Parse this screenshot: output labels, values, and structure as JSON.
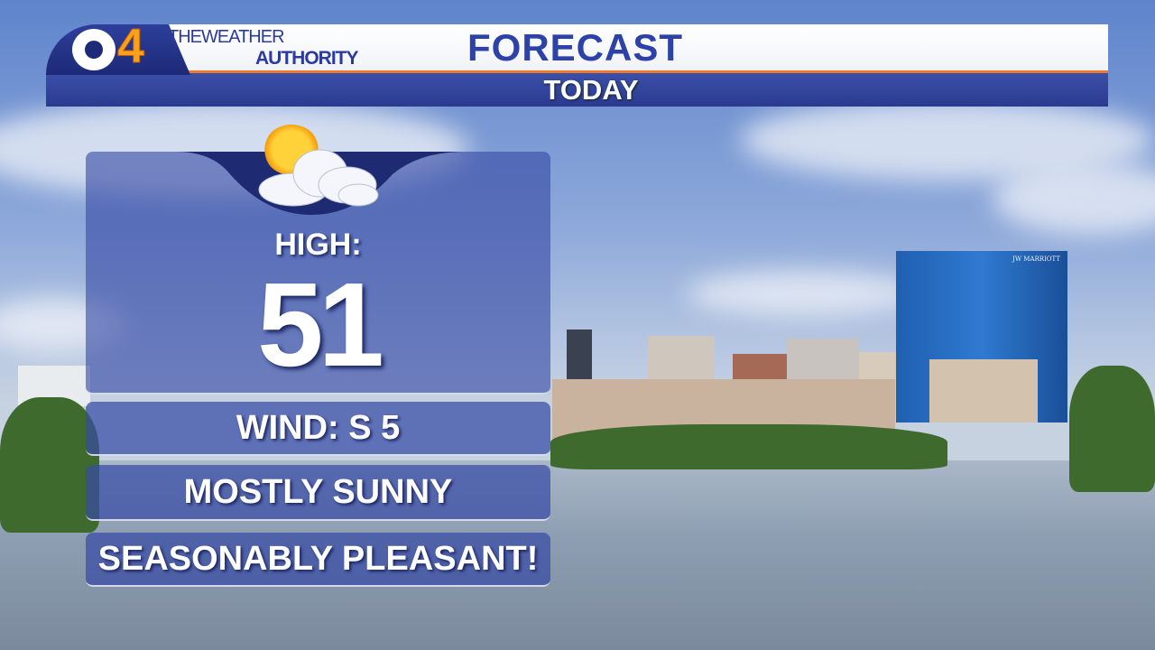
{
  "branding": {
    "channel": "4",
    "network": "CBS",
    "tagline_line1": "THEWEATHER",
    "tagline_line2": "AUTHORITY"
  },
  "header": {
    "title": "FORECAST",
    "subtitle": "TODAY"
  },
  "forecast": {
    "condition_icon": "partly-sunny-icon",
    "high_label": "HIGH:",
    "high_value": "51",
    "wind": "WIND: S 5",
    "condition": "MOSTLY SUNNY",
    "remark": "SEASONABLY PLEASANT!"
  },
  "background": {
    "building_sign": "JW MARRIOTT"
  },
  "colors": {
    "brand_blue": "#2c42a8",
    "accent_orange": "#f07a2a",
    "logo_yellow": "#f7a21a"
  }
}
